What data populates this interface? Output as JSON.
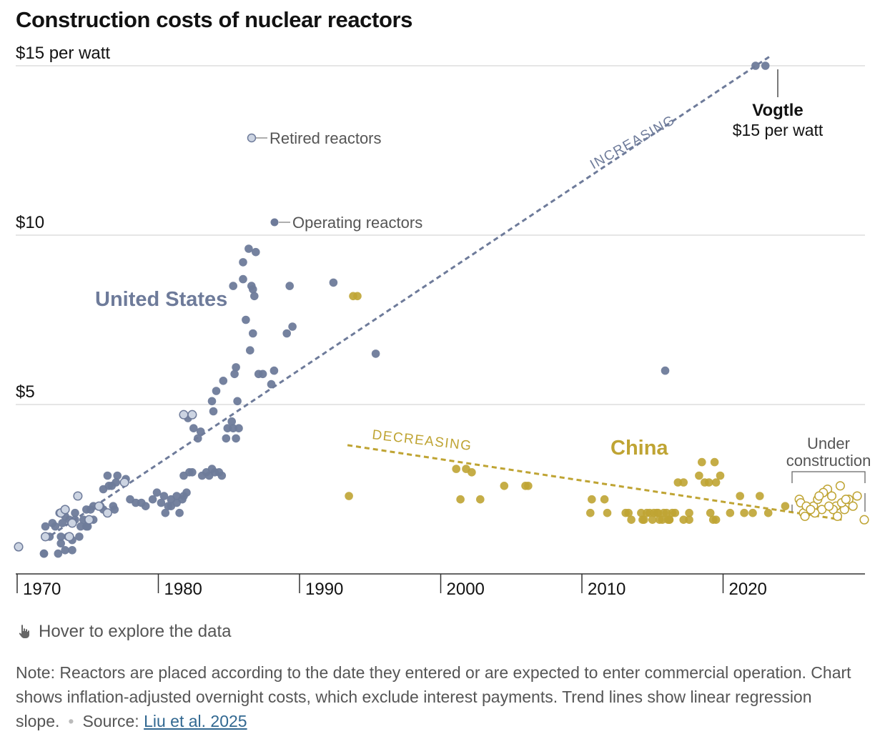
{
  "title": "Construction costs of nuclear reactors",
  "hover_text": "Hover to explore the data",
  "note": "Note: Reactors are placed according to the date they entered or are expected to enter commercial operation. Chart shows inflation-adjusted overnight costs, which exclude interest payments. Trend lines show linear regression slope.",
  "source_label": "Source:",
  "source_link": "Liu et al. 2025",
  "colors": {
    "us": "#6e7b9a",
    "china": "#bfa433",
    "retired_fill": "#ccd4e2"
  },
  "chart_data": {
    "type": "scatter",
    "title": "Construction costs of nuclear reactors",
    "y_tick_labels": [
      "$15 per watt",
      "$10",
      "$5"
    ],
    "y_ticks": [
      15,
      10,
      5
    ],
    "x_tick_labels": [
      "1970",
      "1980",
      "1990",
      "2000",
      "2010",
      "2020"
    ],
    "x_ticks": [
      1970,
      1980,
      1990,
      2000,
      2010,
      2020
    ],
    "xlim": [
      1970,
      2029
    ],
    "ylim": [
      0,
      15.5
    ],
    "grid": true,
    "annotations": {
      "retired": "Retired reactors",
      "operating": "Operating reactors",
      "us_label": "United States",
      "china_label": "China",
      "increasing": "INCREASING",
      "decreasing": "DECREASING",
      "vogtle_name": "Vogtle",
      "vogtle_value": "$15 per watt",
      "under_construction_1": "Under",
      "under_construction_2": "construction"
    },
    "trend_lines": [
      {
        "name": "United States",
        "x": [
          1972,
          2023.5
        ],
        "y": [
          1.0,
          15.3
        ]
      },
      {
        "name": "China",
        "x": [
          1993.5,
          2028.5
        ],
        "y": [
          3.8,
          1.6
        ]
      }
    ],
    "series": [
      {
        "name": "United States operating",
        "x": [
          1972,
          1973,
          1972,
          1973.5,
          1974,
          1973.2,
          1974.5,
          1975,
          1974.2,
          1975.3,
          1973.8,
          1974.8,
          1972.6,
          1975.5,
          1976,
          1976.2,
          1976.6,
          1976.8,
          1977.2,
          1977.8,
          1977,
          1978.5,
          1979.2,
          1980,
          1980.5,
          1981,
          1981.4,
          1981.9,
          1980.8,
          1982.5,
          1983.5,
          1983.2,
          1984.1,
          1983.7,
          1984.6,
          1984.4,
          1985.4,
          1985.6,
          1985.8,
          1984.9,
          1985,
          1985.3,
          1984,
          1983.1,
          1982.9,
          1982.6,
          1982.2,
          1983.9,
          1984.2,
          1984.7,
          1985.5,
          1986.6,
          1986.8,
          1987.2,
          1987.5,
          1988.3,
          1988.1,
          1989.2,
          1989.6,
          1986.3,
          1986.7,
          1986.9,
          1986.5,
          1987.0,
          1986.1,
          1986.8,
          1992.5,
          1995.5,
          1986.1,
          1989.4,
          1985.6,
          1985.7,
          1985.4,
          1981.9,
          1981.8,
          1982.1,
          1972.1,
          1972.4,
          1973.2,
          1972.8,
          1973.7,
          1974,
          1974.6,
          1975.1,
          1975,
          1975.5,
          1976.2,
          1976.9,
          1977.1,
          1976.5,
          1978.1,
          1978.9,
          1979.7,
          1980.3,
          1980.6,
          1981,
          1981.6,
          1981.4,
          1982.3,
          1983.9,
          1973.3,
          1973.5,
          1974.2,
          1973.1,
          2016,
          2022.4,
          2023.1
        ],
        "y": [
          0.6,
          0.6,
          0.6,
          0.7,
          0.7,
          0.9,
          1.1,
          1.4,
          1.6,
          1.9,
          1.6,
          1.6,
          1.5,
          1.6,
          2.0,
          2.5,
          2.6,
          2.6,
          2.9,
          2.8,
          1.9,
          2.1,
          2.0,
          2.4,
          2.3,
          2.2,
          2.3,
          2.3,
          2.0,
          3.0,
          3.0,
          2.9,
          3.0,
          2.9,
          2.9,
          3.0,
          4.3,
          4.0,
          4.3,
          4.0,
          4.3,
          4.5,
          4.8,
          4.2,
          4.0,
          4.3,
          4.6,
          5.1,
          5.4,
          5.7,
          5.9,
          6.6,
          7.1,
          5.9,
          5.9,
          6.0,
          5.6,
          7.1,
          7.3,
          7.5,
          8.5,
          8.2,
          9.6,
          9.5,
          8.7,
          8.4,
          8.6,
          6.5,
          9.2,
          8.5,
          6.1,
          5.1,
          8.5,
          2.9,
          2.2,
          2.4,
          1.4,
          1.1,
          1.1,
          1.4,
          1.1,
          1.0,
          1.4,
          1.4,
          1.9,
          2.0,
          1.9,
          2.0,
          2.7,
          2.9,
          2.2,
          2.1,
          2.2,
          2.1,
          1.8,
          2.0,
          1.8,
          2.1,
          3.0,
          3.1,
          1.5,
          1.7,
          1.8,
          1.8,
          6.0,
          15.0,
          15.0
        ]
      },
      {
        "name": "United States retired",
        "x": [
          1970.2,
          1972.1,
          1973.2,
          1973.8,
          1974.4,
          1975.9,
          1976.5,
          1977.7,
          1981.9,
          1982.5,
          1973.5,
          1974.0,
          1975.2
        ],
        "y": [
          0.8,
          1.1,
          1.8,
          1.1,
          2.3,
          2.0,
          1.8,
          2.7,
          4.7,
          4.7,
          1.9,
          1.5,
          1.6
        ]
      },
      {
        "name": "China operating",
        "x": [
          1993.9,
          1994.2,
          1993.6,
          2001.2,
          2001.9,
          2002.3,
          2001.5,
          2002.9,
          2004.6,
          2006.1,
          2006.3,
          2010.8,
          2010.7,
          2011.7,
          2011.9,
          2013.4,
          2013.6,
          2014.4,
          2014.3,
          2014.7,
          2014.9,
          2015.4,
          2015.6,
          2015.9,
          2016.1,
          2016.3,
          2016.5,
          2016.2,
          2015.1,
          2015.5,
          2014.5,
          2015.8,
          2016.3,
          2016.9,
          2017.3,
          2017.7,
          2017.3,
          2018.6,
          2018.4,
          2018.8,
          2019.1,
          2019.5,
          2019.6,
          2019.9,
          2019.4,
          2019.6,
          2020.6,
          2021.3,
          2021.6,
          2022.2,
          2022.7,
          2023.3,
          2024.5,
          2013.2,
          2015.2,
          2016.7,
          2017.7,
          2019.2
        ],
        "y": [
          8.2,
          8.2,
          2.3,
          3.1,
          3.1,
          3.0,
          2.2,
          2.2,
          2.6,
          2.6,
          2.6,
          2.2,
          1.8,
          2.2,
          1.8,
          1.8,
          1.6,
          1.6,
          1.8,
          1.8,
          1.8,
          1.8,
          1.6,
          1.8,
          1.8,
          1.6,
          1.8,
          1.6,
          1.6,
          1.8,
          1.6,
          1.6,
          1.6,
          2.7,
          2.7,
          1.6,
          1.6,
          3.3,
          2.9,
          2.7,
          2.7,
          3.3,
          2.7,
          2.9,
          1.6,
          1.6,
          1.8,
          2.3,
          1.8,
          1.8,
          2.3,
          1.8,
          2.0,
          1.8,
          1.8,
          1.8,
          1.8,
          1.8
        ],
        "notes": "approximate"
      },
      {
        "name": "China under construction",
        "x": [
          2025.5,
          2025.8,
          2026.5,
          2026.8,
          2027.1,
          2027.5,
          2027.8,
          2028.1,
          2028.4,
          2028.7,
          2029.0,
          2025.6,
          2026.0,
          2026.6,
          2027.2,
          2027.9,
          2028.5,
          2029.3,
          2025.9,
          2026.3,
          2026.9,
          2027.6,
          2028.2,
          2028.8,
          2029.6,
          2030.1
        ],
        "y": [
          2.2,
          1.8,
          2.0,
          2.2,
          1.9,
          2.5,
          2.3,
          2.0,
          2.6,
          1.9,
          2.2,
          2.1,
          2.0,
          1.8,
          2.4,
          1.9,
          2.1,
          2.0,
          1.7,
          1.9,
          2.3,
          2.0,
          1.7,
          2.2,
          2.3,
          1.6
        ]
      }
    ]
  }
}
